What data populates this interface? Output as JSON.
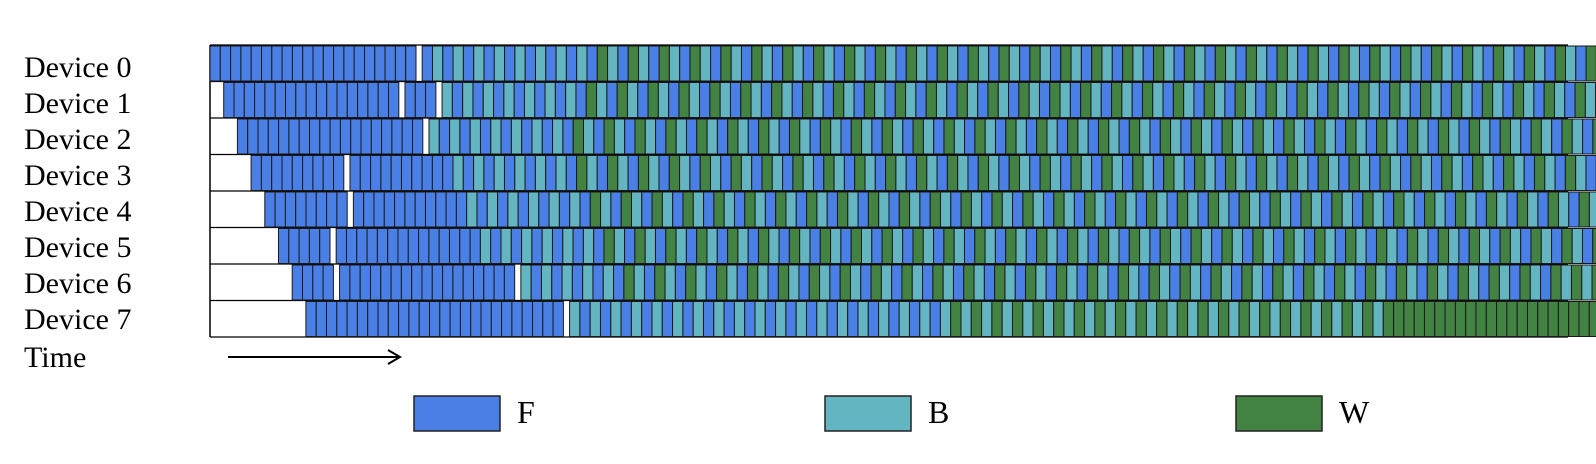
{
  "devices": [
    {
      "label": "Device 0",
      "sequence": "FFFFFFFFFFFFFFFFFFFF_FBFBFBFBFBFBFBFBFWBFWBFWBFWBFWBFWBFWBFWBFWBFWBFWBFWBFWBFWBFWBFWBFWBFWBFWBFWBFWBFWBFWBFWBFWBFWBFWBFWBFWBFWBFWBFWBFWBFWBFWBFWBWBWBWBWBWBWBWW"
    },
    {
      "label": "Device 1",
      "sequence": "FFFFFFFFFFFFFFFFF_FFF_BFBFBFBFBFBFBFWBFWBFWBFWBFWBFWBFWBFWBFWBFWBFWBFWBFWBFWBFWBFWBFWBFWBFWBFWBFWBFWBFWBFWBFWBFWBFWBFWBFWBFWBFWBFWBFWBFWBFWBWBWBWBWBWBWBWBWBWW"
    },
    {
      "label": "Device 2",
      "sequence": "FFFFFFFFFFFFFFFFFF_BFBFBFBFBFBFBFWBFWBFWBFWBFWBFWBFWBFWBFWBFWBFWBFWBFWBFWBFWBFWBFWBFWBFWBFWBFWBFWBFWBFWBFWBFWBFWBFWBFWBFWBFWBFWBFWBFWBFWBFWBWBWBWBWBWBWBWBWBWWW"
    },
    {
      "label": "Device 3",
      "sequence": "FFFFFFFFF_FFFFFFFFFFBFBFBFBFBFBFWBFWBFWBFWBFWBFWBFWBFWBFWBFWBFWBFWBFWBFWBFWBFWBFWBFWBFWBFWBFWBFWBFWBFWBFWBFWBFWBFWBFWBFWBFWBFWBFWBFWBFWBFWBWBWBWBWBWBWBWBWBWWWWW"
    },
    {
      "label": "Device 4",
      "sequence": "FFFFFFFF_FFFFFFFFFFFBFBFBFBFBFBFWBFWBFWBFWBFWBFWBFWBFWBFWBFWBFWBFWBFWBFWBFWBFWBFWBFWBFWBFWBFWBFWBFWBFWBFWBFWBFWBFWBFWBFWBFWBFWBFWBFWBFWBWBWBWBWBWBWBWBWBWWWWWWWW"
    },
    {
      "label": "Device 5",
      "sequence": "FFFFF_FFFFFFFFFFFFFFBFBFBFBFBFBFWBFWBFWBFWBFWBFWBFWBFWBFWBFWBFWBFWBFWBFWBFWBFWBFWBFWBFWBFWBFWBFWBFWBFWBFWBFWBFWBFWBFWBFWBFWBFWBFWBWBWBWBWBWBWBWBWWWWWWWWWWWWWWWW"
    },
    {
      "label": "Device 6",
      "sequence": "FFFF_FFFFFFFFFFFFFFFFF_BFBFBFBFBFWBFWBFWBFWBFWBFWBFWBFWBFWBFWBFWBFWBFWBFWBFWBFWBFWBFWBFWBFWBFWBFWBFWBFWBFWBFWBFWBFWBFWBFWBFWBWBWBWBWBWBWBWWWWWWWWWWWWWWWWWWWWWW"
    },
    {
      "label": "Device 7",
      "sequence": "FFFFFFFFFFFFFFFFFFFFFFFFF_BFBFBFBFBFBFBFBFBFBFBFBFBFBFBFBFBFBFBWBWBWBWBWBWBWBWBWBWBWBWBWBWBWBWBWBWBWBWBWBWWWWWWWWWWWWWWWWWWWWWWWWWWWWWWWWWW"
    }
  ],
  "time_label": "Time",
  "legend": [
    {
      "key": "F",
      "label": "F",
      "color": "#4a7fe6"
    },
    {
      "key": "B",
      "label": "B",
      "color": "#63b5c2"
    },
    {
      "key": "W",
      "label": "W",
      "color": "#428243"
    }
  ]
}
